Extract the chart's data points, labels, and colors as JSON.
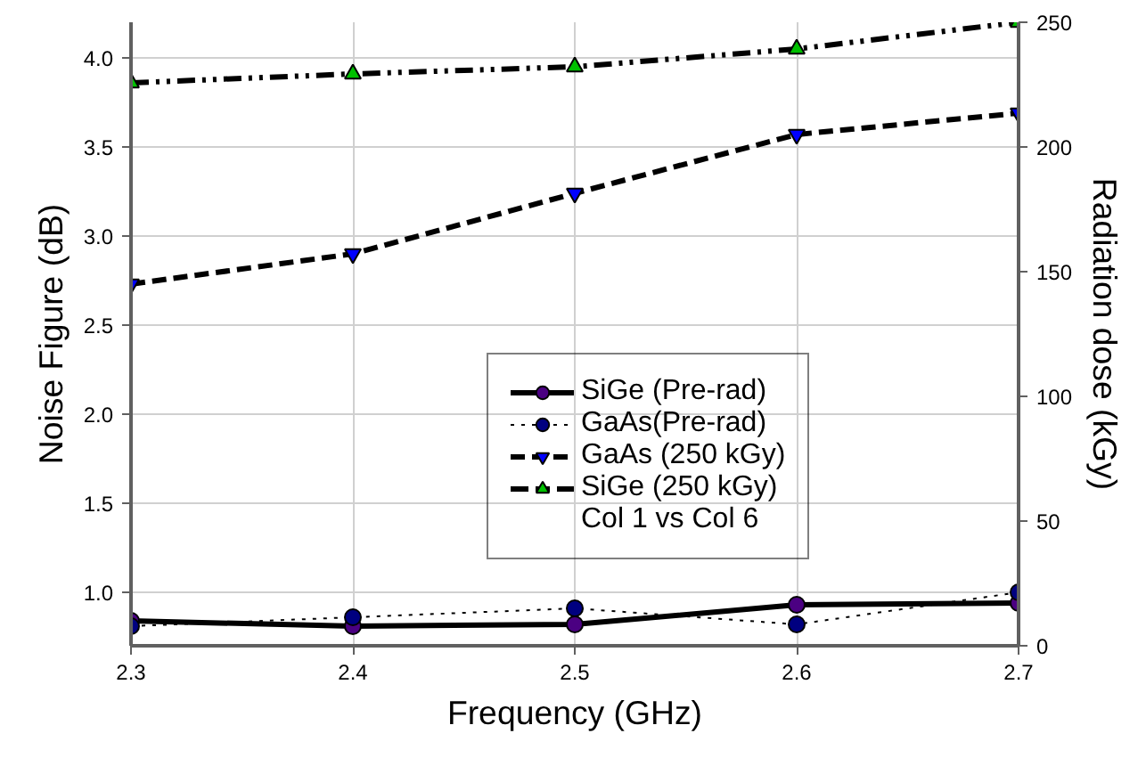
{
  "chart_data": {
    "type": "line",
    "xlabel": "Frequency (GHz)",
    "ylabel": "Noise Figure (dB)",
    "y2label": "Radiation dose (kGy)",
    "x": [
      2.3,
      2.4,
      2.5,
      2.6,
      2.7
    ],
    "series": [
      {
        "name": "SiGe (Pre-rad)",
        "color": "#4b0082",
        "marker": "circle",
        "line_style": "solid",
        "values": [
          0.84,
          0.81,
          0.82,
          0.93,
          0.94
        ]
      },
      {
        "name": "GaAs(Pre-rad)",
        "color": "#000080",
        "marker": "circle",
        "line_style": "dotted",
        "values": [
          0.81,
          0.86,
          0.91,
          0.82,
          1.0
        ]
      },
      {
        "name": "GaAs (250 kGy)",
        "color": "#0000ff",
        "marker": "triangle",
        "line_style": "dashed",
        "values": [
          2.73,
          2.9,
          3.24,
          3.57,
          3.69
        ]
      },
      {
        "name": "SiGe (250 kGy)",
        "color": "#00c000",
        "marker": "triangle",
        "line_style": "dashdot",
        "values": [
          3.86,
          3.91,
          3.95,
          4.05,
          4.2
        ]
      }
    ],
    "annotations": [
      "Col 1 vs Col 6"
    ],
    "xlim": [
      2.3,
      2.7
    ],
    "xticks": [
      2.3,
      2.4,
      2.5,
      2.6,
      2.7
    ],
    "ylim": [
      0.7,
      4.2
    ],
    "yticks": [
      {
        "value": 1.0,
        "label": "1.0"
      },
      {
        "value": 1.5,
        "label": "1.5"
      },
      {
        "value": 2.0,
        "label": "2.0"
      },
      {
        "value": 2.5,
        "label": "2.5"
      },
      {
        "value": 3.0,
        "label": "3.0"
      },
      {
        "value": 3.5,
        "label": "3.5"
      },
      {
        "value": 4.0,
        "label": "4.0"
      }
    ],
    "y2lim": [
      0,
      250
    ],
    "y2ticks": [
      0,
      50,
      100,
      150,
      200,
      250
    ],
    "grid": true,
    "legend": "bottom right"
  }
}
